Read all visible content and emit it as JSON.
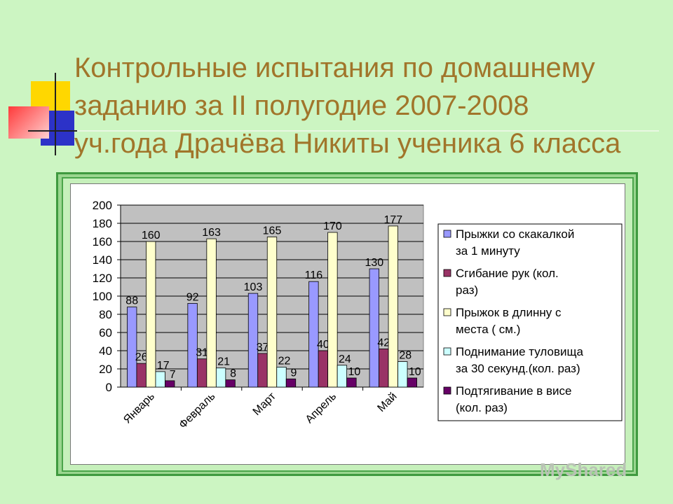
{
  "title_lines": [
    "Контрольные испытания по домашнему",
    "заданию за II полугодие 2007-2008",
    "уч.года Драчёва Никиты ученика 6 класса"
  ],
  "watermark": "MyShared",
  "chart_data": {
    "type": "bar",
    "categories": [
      "Январь",
      "Февраль",
      "Март",
      "Апрель",
      "Май"
    ],
    "ylim": [
      0,
      200
    ],
    "yticks": [
      0,
      20,
      40,
      60,
      80,
      100,
      120,
      140,
      160,
      180,
      200
    ],
    "grid": true,
    "legend_position": "right",
    "series": [
      {
        "name": "Прыжки со скакалкой за 1 минуту",
        "legend_lines": [
          "Прыжки со скакалкой",
          "за 1 минуту"
        ],
        "color": "#9999ff",
        "values": [
          88,
          92,
          103,
          116,
          130
        ]
      },
      {
        "name": "Сгибание рук (кол. раз)",
        "legend_lines": [
          "Сгибание рук  (кол.",
          "раз)"
        ],
        "color": "#993366",
        "values": [
          26,
          31,
          37,
          40,
          42
        ]
      },
      {
        "name": "Прыжок в длинну с места ( см.)",
        "legend_lines": [
          "Прыжок в длинну с",
          "места ( см.)"
        ],
        "color": "#ffffcc",
        "values": [
          160,
          163,
          165,
          170,
          177
        ]
      },
      {
        "name": "Поднимание туловища за 30 секунд.(кол. раз)",
        "legend_lines": [
          "Поднимание туловища",
          "за 30 секунд.(кол. раз)"
        ],
        "color": "#ccffff",
        "values": [
          17,
          21,
          22,
          24,
          28
        ]
      },
      {
        "name": "Подтягивание в висе (кол. раз)",
        "legend_lines": [
          "Подтягивание в висе",
          "(кол. раз)"
        ],
        "color": "#660066",
        "values": [
          7,
          8,
          9,
          10,
          10
        ]
      }
    ]
  }
}
